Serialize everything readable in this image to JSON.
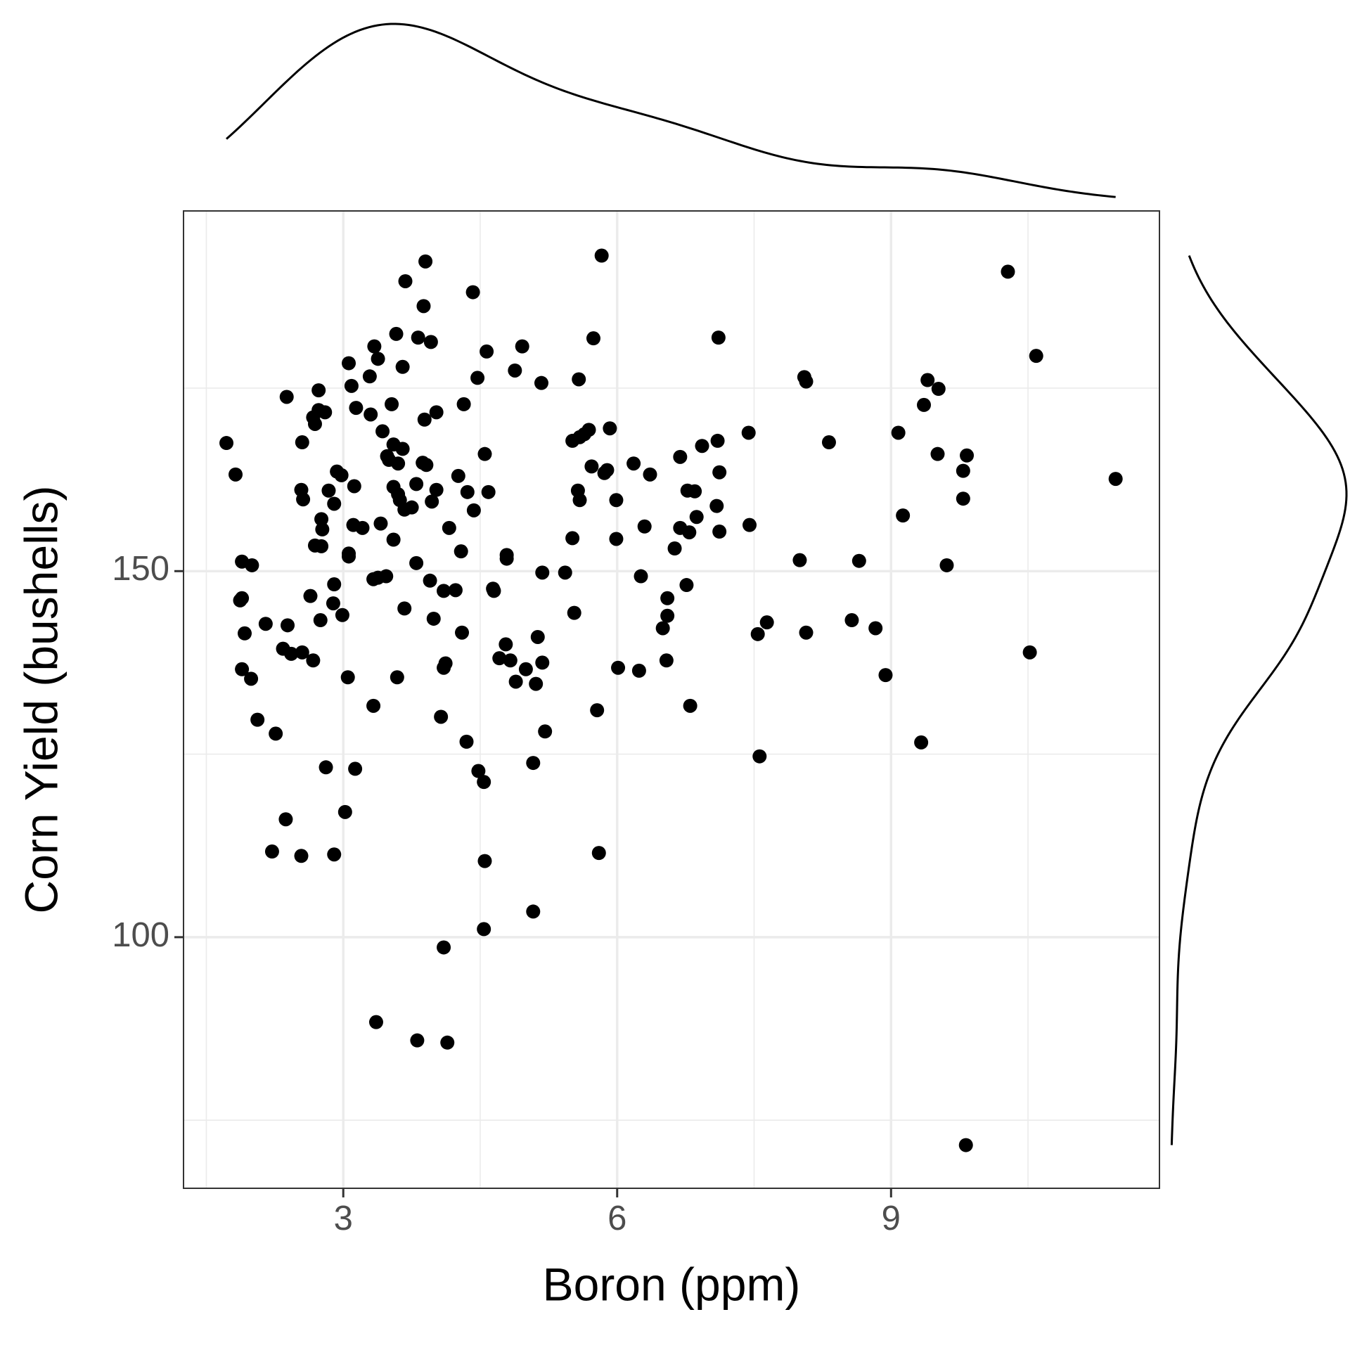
{
  "chart_data": {
    "type": "scatter",
    "x_label": "Boron (ppm)",
    "y_label": "Corn Yield (bushells)",
    "x": [
      1.72,
      1.82,
      1.89,
      2.0,
      1.87,
      1.89,
      1.92,
      1.89,
      1.99,
      2.06,
      2.15,
      2.26,
      2.22,
      2.37,
      2.54,
      2.9,
      2.34,
      2.43,
      2.55,
      2.39,
      2.67,
      2.64,
      2.75,
      2.89,
      2.9,
      2.99,
      3.06,
      3.05,
      2.81,
      3.13,
      3.02,
      3.33,
      3.36,
      3.81,
      4.14,
      4.1,
      4.54,
      5.08,
      4.55,
      5.8,
      9.82,
      9.33,
      7.56,
      6.8,
      5.78,
      5.08,
      4.48,
      4.54,
      4.35,
      4.07,
      5.21,
      3.59,
      4.12,
      4.1,
      4.3,
      4.71,
      4.78,
      4.83,
      4.89,
      5.0,
      5.11,
      5.18,
      5.13,
      6.01,
      6.24,
      6.54,
      6.5,
      6.55,
      6.55,
      6.76,
      6.26,
      6.63,
      6.69,
      6.79,
      6.87,
      7.12,
      7.09,
      7.45,
      6.3,
      5.99,
      5.99,
      5.59,
      5.57,
      5.51,
      5.53,
      5.43,
      5.18,
      4.79,
      4.79,
      4.64,
      4.65,
      4.23,
      4.1,
      4.29,
      4.16,
      3.99,
      3.95,
      3.8,
      3.67,
      3.47,
      3.33,
      3.38,
      3.41,
      3.55,
      3.21,
      3.11,
      3.06,
      2.76,
      2.69,
      2.77,
      2.76,
      2.84,
      2.9,
      2.56,
      2.54,
      2.98,
      2.93,
      3.12,
      2.55,
      2.67,
      2.69,
      2.73,
      2.8,
      2.73,
      2.38,
      3.14,
      3.3,
      3.43,
      3.53,
      3.09,
      3.29,
      3.06,
      3.38,
      3.34,
      3.58,
      3.65,
      3.68,
      3.9,
      3.88,
      3.82,
      3.96,
      3.89,
      4.02,
      4.32,
      4.42,
      4.47,
      4.57,
      4.88,
      4.96,
      5.17,
      4.55,
      4.59,
      4.36,
      4.43,
      4.26,
      4.02,
      3.8,
      3.91,
      3.87,
      3.97,
      3.75,
      3.67,
      3.65,
      3.55,
      3.5,
      3.6,
      3.48,
      3.55,
      3.6,
      3.62,
      5.58,
      5.74,
      5.83,
      5.51,
      5.59,
      5.64,
      5.69,
      5.92,
      5.72,
      5.86,
      5.89,
      6.18,
      6.36,
      6.69,
      6.93,
      7.1,
      7.12,
      7.44,
      7.11,
      6.77,
      6.85,
      8.05,
      8.07,
      8.32,
      9.08,
      9.4,
      9.52,
      9.36,
      9.51,
      9.83,
      9.79,
      9.79,
      9.13,
      9.61,
      8.0,
      8.65,
      8.07,
      8.57,
      8.83,
      8.94,
      7.64,
      7.54,
      10.28,
      10.59,
      11.46,
      10.52
    ],
    "y": [
      167.5,
      163.2,
      151.3,
      150.8,
      146.0,
      146.3,
      141.5,
      136.6,
      135.3,
      129.7,
      142.8,
      127.8,
      111.7,
      116.1,
      111.1,
      111.3,
      139.4,
      138.7,
      138.9,
      142.6,
      137.8,
      146.6,
      143.3,
      145.6,
      148.2,
      144.0,
      152.4,
      135.5,
      123.2,
      123.0,
      117.1,
      131.6,
      88.4,
      85.9,
      85.6,
      98.6,
      101.1,
      103.5,
      110.4,
      111.5,
      71.6,
      126.6,
      124.7,
      131.6,
      131.0,
      123.8,
      122.7,
      121.2,
      126.7,
      130.1,
      128.1,
      135.5,
      137.4,
      136.8,
      141.6,
      138.1,
      140.0,
      137.8,
      134.9,
      136.6,
      134.6,
      137.5,
      141.0,
      136.8,
      136.4,
      137.8,
      142.2,
      143.9,
      146.3,
      148.1,
      149.3,
      153.1,
      155.9,
      155.3,
      157.4,
      155.4,
      158.9,
      156.3,
      156.1,
      154.4,
      159.7,
      159.7,
      161.0,
      154.5,
      144.3,
      149.8,
      149.8,
      152.2,
      151.7,
      147.6,
      147.3,
      147.4,
      147.3,
      152.7,
      155.9,
      143.5,
      148.7,
      151.1,
      144.9,
      149.3,
      148.9,
      149.1,
      156.5,
      154.3,
      155.9,
      156.3,
      152.0,
      153.4,
      153.5,
      155.7,
      157.1,
      161.0,
      159.2,
      159.8,
      161.1,
      163.1,
      163.6,
      161.6,
      167.6,
      171.0,
      170.1,
      172.0,
      171.7,
      174.7,
      173.8,
      172.3,
      171.4,
      169.1,
      172.8,
      175.3,
      176.6,
      178.4,
      179.0,
      180.7,
      182.4,
      177.9,
      189.6,
      192.3,
      186.2,
      181.9,
      181.3,
      170.7,
      171.7,
      172.8,
      188.1,
      176.4,
      180.0,
      177.4,
      180.7,
      175.7,
      166.0,
      160.8,
      160.8,
      158.3,
      163.0,
      161.1,
      161.9,
      164.5,
      164.8,
      159.5,
      158.7,
      158.4,
      166.7,
      167.3,
      165.2,
      164.7,
      165.7,
      161.5,
      160.5,
      159.7,
      176.2,
      181.8,
      193.1,
      167.8,
      168.3,
      168.7,
      169.3,
      169.5,
      164.3,
      163.4,
      163.8,
      164.7,
      163.2,
      165.6,
      167.1,
      167.8,
      163.5,
      168.9,
      181.9,
      161.0,
      160.9,
      176.5,
      175.9,
      167.6,
      168.9,
      176.1,
      174.9,
      172.7,
      166.0,
      165.8,
      163.7,
      159.9,
      157.6,
      150.8,
      151.5,
      151.4,
      141.6,
      143.3,
      142.2,
      135.8,
      143.0,
      141.4,
      190.9,
      179.4,
      162.6,
      138.9
    ],
    "color": "#000000",
    "xlim": [
      1.25,
      11.94
    ],
    "ylim": [
      65.7,
      199.2
    ],
    "xticks": [
      3,
      6,
      9
    ],
    "yticks": [
      100,
      150
    ],
    "xminorticks": [
      1.5,
      4.5,
      7.5,
      10.5
    ],
    "yminorticks": [
      75,
      125,
      175
    ],
    "grid": true,
    "marginal": "density"
  }
}
